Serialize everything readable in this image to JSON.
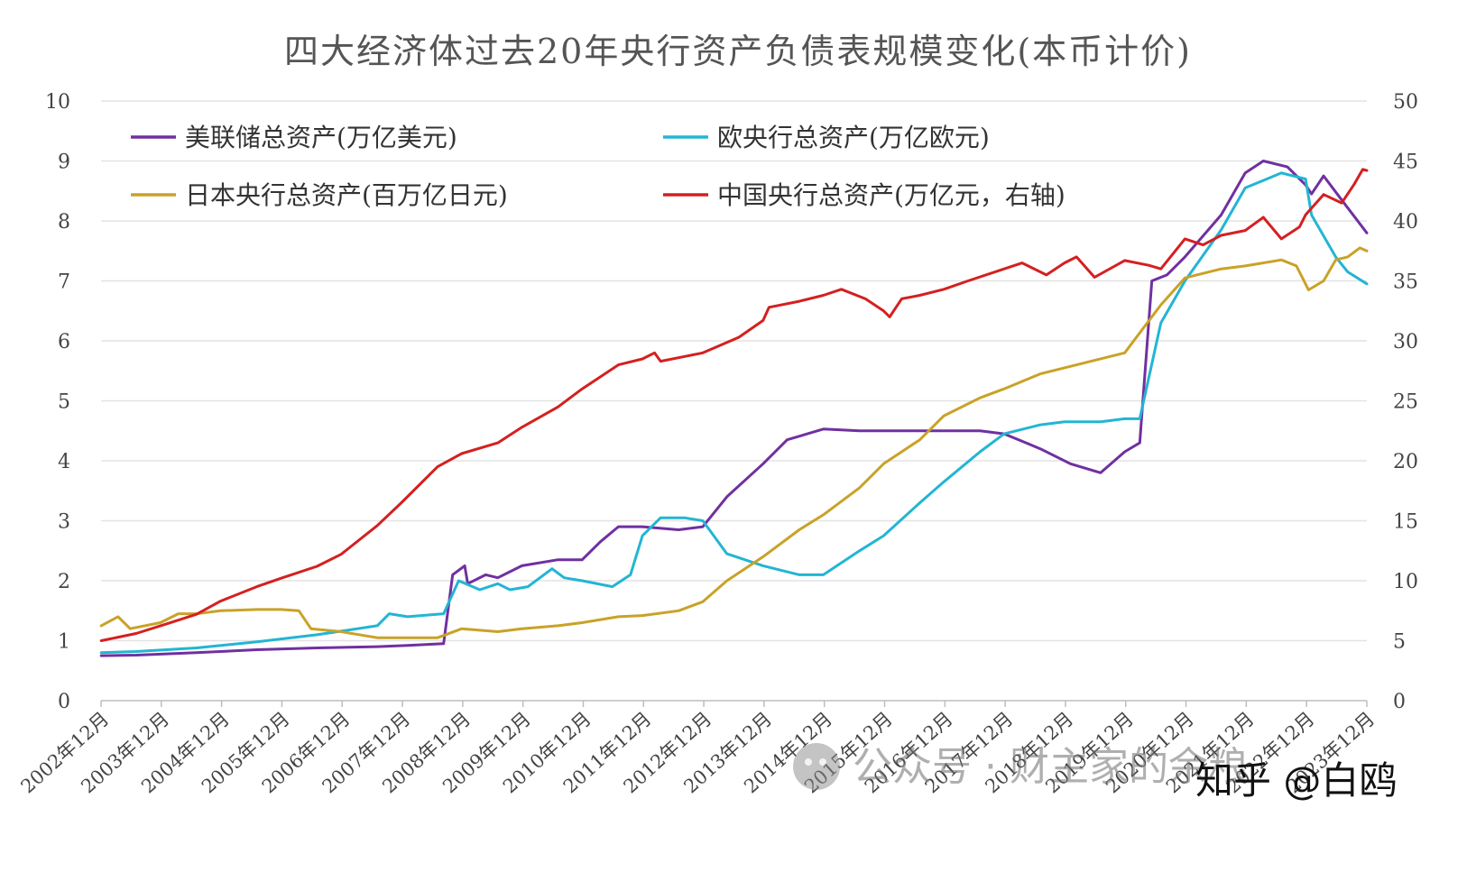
{
  "chart_data": {
    "type": "line",
    "title": "四大经济体过去20年央行资产负债表规模变化(本币计价)",
    "y_left": {
      "ticks": [
        "0",
        "1",
        "2",
        "3",
        "4",
        "5",
        "6",
        "7",
        "8",
        "9",
        "10"
      ],
      "min": 0,
      "max": 10
    },
    "y_right": {
      "ticks": [
        "0",
        "5",
        "10",
        "15",
        "20",
        "25",
        "30",
        "35",
        "40",
        "45",
        "50"
      ],
      "min": 0,
      "max": 50
    },
    "x_ticks": [
      "2002年12月",
      "2003年12月",
      "2004年12月",
      "2005年12月",
      "2006年12月",
      "2007年12月",
      "2008年12月",
      "2009年12月",
      "2010年12月",
      "2011年12月",
      "2012年12月",
      "2013年12月",
      "2014年12月",
      "2015年12月",
      "2016年12月",
      "2017年12月",
      "2018年12月",
      "2019年12月",
      "2020年12月",
      "2021年12月",
      "2022年12月",
      "2023年12月"
    ],
    "x_range": [
      2002.917,
      2023.917
    ],
    "grid": true,
    "legend_position": "top-left",
    "series": [
      {
        "name": "美联储总资产(万亿美元)",
        "color": "#7030a0",
        "axis": "left",
        "points": [
          [
            2002.92,
            0.75
          ],
          [
            2003.5,
            0.76
          ],
          [
            2004.5,
            0.8
          ],
          [
            2005.5,
            0.85
          ],
          [
            2006.5,
            0.88
          ],
          [
            2007.5,
            0.9
          ],
          [
            2008.0,
            0.92
          ],
          [
            2008.6,
            0.95
          ],
          [
            2008.75,
            2.1
          ],
          [
            2008.95,
            2.25
          ],
          [
            2009.0,
            1.95
          ],
          [
            2009.3,
            2.1
          ],
          [
            2009.5,
            2.05
          ],
          [
            2009.9,
            2.25
          ],
          [
            2010.5,
            2.35
          ],
          [
            2010.9,
            2.35
          ],
          [
            2011.2,
            2.65
          ],
          [
            2011.5,
            2.9
          ],
          [
            2011.9,
            2.9
          ],
          [
            2012.5,
            2.85
          ],
          [
            2012.9,
            2.9
          ],
          [
            2013.3,
            3.4
          ],
          [
            2013.9,
            3.95
          ],
          [
            2014.3,
            4.35
          ],
          [
            2014.9,
            4.53
          ],
          [
            2015.5,
            4.5
          ],
          [
            2016.5,
            4.5
          ],
          [
            2017.5,
            4.5
          ],
          [
            2017.9,
            4.45
          ],
          [
            2018.5,
            4.2
          ],
          [
            2019.0,
            3.95
          ],
          [
            2019.5,
            3.8
          ],
          [
            2019.9,
            4.15
          ],
          [
            2020.15,
            4.3
          ],
          [
            2020.35,
            7.0
          ],
          [
            2020.6,
            7.1
          ],
          [
            2020.9,
            7.4
          ],
          [
            2021.5,
            8.1
          ],
          [
            2021.9,
            8.8
          ],
          [
            2022.2,
            9.0
          ],
          [
            2022.6,
            8.9
          ],
          [
            2022.9,
            8.6
          ],
          [
            2023.0,
            8.45
          ],
          [
            2023.2,
            8.75
          ],
          [
            2023.5,
            8.35
          ],
          [
            2023.917,
            7.8
          ]
        ]
      },
      {
        "name": "欧央行总资产(万亿欧元)",
        "color": "#23b5d3",
        "axis": "left",
        "points": [
          [
            2002.92,
            0.8
          ],
          [
            2003.5,
            0.82
          ],
          [
            2004.5,
            0.88
          ],
          [
            2005.5,
            0.98
          ],
          [
            2006.5,
            1.1
          ],
          [
            2007.5,
            1.25
          ],
          [
            2007.7,
            1.45
          ],
          [
            2008.0,
            1.4
          ],
          [
            2008.6,
            1.45
          ],
          [
            2008.85,
            2.0
          ],
          [
            2009.2,
            1.85
          ],
          [
            2009.5,
            1.95
          ],
          [
            2009.7,
            1.85
          ],
          [
            2010.0,
            1.9
          ],
          [
            2010.4,
            2.2
          ],
          [
            2010.6,
            2.05
          ],
          [
            2010.9,
            2.0
          ],
          [
            2011.4,
            1.9
          ],
          [
            2011.7,
            2.1
          ],
          [
            2011.9,
            2.75
          ],
          [
            2012.2,
            3.05
          ],
          [
            2012.6,
            3.05
          ],
          [
            2012.9,
            3.0
          ],
          [
            2013.3,
            2.45
          ],
          [
            2013.9,
            2.25
          ],
          [
            2014.5,
            2.1
          ],
          [
            2014.9,
            2.1
          ],
          [
            2015.5,
            2.5
          ],
          [
            2015.9,
            2.75
          ],
          [
            2016.5,
            3.3
          ],
          [
            2016.9,
            3.65
          ],
          [
            2017.5,
            4.15
          ],
          [
            2017.9,
            4.45
          ],
          [
            2018.5,
            4.6
          ],
          [
            2018.9,
            4.65
          ],
          [
            2019.5,
            4.65
          ],
          [
            2019.9,
            4.7
          ],
          [
            2020.15,
            4.7
          ],
          [
            2020.5,
            6.3
          ],
          [
            2020.9,
            7.0
          ],
          [
            2021.5,
            7.85
          ],
          [
            2021.9,
            8.55
          ],
          [
            2022.5,
            8.8
          ],
          [
            2022.9,
            8.7
          ],
          [
            2023.0,
            8.1
          ],
          [
            2023.4,
            7.4
          ],
          [
            2023.6,
            7.15
          ],
          [
            2023.917,
            6.95
          ]
        ]
      },
      {
        "name": "日本央行总资产(百万亿日元)",
        "color": "#c9a227",
        "axis": "left",
        "points": [
          [
            2002.92,
            1.25
          ],
          [
            2003.2,
            1.4
          ],
          [
            2003.4,
            1.2
          ],
          [
            2003.9,
            1.3
          ],
          [
            2004.2,
            1.45
          ],
          [
            2004.5,
            1.45
          ],
          [
            2004.9,
            1.5
          ],
          [
            2005.5,
            1.52
          ],
          [
            2005.9,
            1.52
          ],
          [
            2006.2,
            1.5
          ],
          [
            2006.4,
            1.2
          ],
          [
            2006.9,
            1.15
          ],
          [
            2007.5,
            1.05
          ],
          [
            2007.9,
            1.05
          ],
          [
            2008.5,
            1.05
          ],
          [
            2008.9,
            1.2
          ],
          [
            2009.5,
            1.15
          ],
          [
            2009.9,
            1.2
          ],
          [
            2010.5,
            1.25
          ],
          [
            2010.9,
            1.3
          ],
          [
            2011.5,
            1.4
          ],
          [
            2011.9,
            1.42
          ],
          [
            2012.5,
            1.5
          ],
          [
            2012.9,
            1.65
          ],
          [
            2013.3,
            2.0
          ],
          [
            2013.9,
            2.4
          ],
          [
            2014.5,
            2.85
          ],
          [
            2014.9,
            3.1
          ],
          [
            2015.5,
            3.55
          ],
          [
            2015.9,
            3.95
          ],
          [
            2016.5,
            4.35
          ],
          [
            2016.9,
            4.75
          ],
          [
            2017.5,
            5.05
          ],
          [
            2017.9,
            5.2
          ],
          [
            2018.5,
            5.45
          ],
          [
            2018.9,
            5.55
          ],
          [
            2019.5,
            5.7
          ],
          [
            2019.9,
            5.8
          ],
          [
            2020.5,
            6.6
          ],
          [
            2020.9,
            7.05
          ],
          [
            2021.5,
            7.2
          ],
          [
            2021.9,
            7.25
          ],
          [
            2022.5,
            7.35
          ],
          [
            2022.75,
            7.25
          ],
          [
            2022.95,
            6.85
          ],
          [
            2023.2,
            7.0
          ],
          [
            2023.4,
            7.35
          ],
          [
            2023.6,
            7.4
          ],
          [
            2023.8,
            7.55
          ],
          [
            2023.917,
            7.5
          ]
        ]
      },
      {
        "name": "中国央行总资产(万亿元，右轴)",
        "color": "#d42020",
        "axis": "right",
        "points": [
          [
            2002.92,
            5.0
          ],
          [
            2003.5,
            5.6
          ],
          [
            2004.0,
            6.4
          ],
          [
            2004.5,
            7.2
          ],
          [
            2004.9,
            8.3
          ],
          [
            2005.5,
            9.5
          ],
          [
            2005.9,
            10.2
          ],
          [
            2006.5,
            11.2
          ],
          [
            2006.9,
            12.2
          ],
          [
            2007.5,
            14.6
          ],
          [
            2007.9,
            16.5
          ],
          [
            2008.5,
            19.5
          ],
          [
            2008.9,
            20.6
          ],
          [
            2009.5,
            21.5
          ],
          [
            2009.9,
            22.8
          ],
          [
            2010.5,
            24.5
          ],
          [
            2010.9,
            26.0
          ],
          [
            2011.5,
            28.0
          ],
          [
            2011.9,
            28.5
          ],
          [
            2012.1,
            29.0
          ],
          [
            2012.2,
            28.3
          ],
          [
            2012.9,
            29.0
          ],
          [
            2013.5,
            30.3
          ],
          [
            2013.9,
            31.7
          ],
          [
            2014.0,
            32.8
          ],
          [
            2014.5,
            33.3
          ],
          [
            2014.9,
            33.8
          ],
          [
            2015.2,
            34.3
          ],
          [
            2015.6,
            33.5
          ],
          [
            2015.9,
            32.5
          ],
          [
            2016.0,
            32.0
          ],
          [
            2016.2,
            33.5
          ],
          [
            2016.5,
            33.8
          ],
          [
            2016.9,
            34.3
          ],
          [
            2017.3,
            35.0
          ],
          [
            2017.9,
            36.0
          ],
          [
            2018.2,
            36.5
          ],
          [
            2018.6,
            35.5
          ],
          [
            2018.9,
            36.5
          ],
          [
            2019.1,
            37.0
          ],
          [
            2019.4,
            35.3
          ],
          [
            2019.9,
            36.7
          ],
          [
            2020.3,
            36.3
          ],
          [
            2020.5,
            36.0
          ],
          [
            2020.9,
            38.5
          ],
          [
            2021.2,
            38.0
          ],
          [
            2021.5,
            38.8
          ],
          [
            2021.9,
            39.2
          ],
          [
            2022.2,
            40.3
          ],
          [
            2022.5,
            38.5
          ],
          [
            2022.8,
            39.5
          ],
          [
            2022.9,
            40.5
          ],
          [
            2023.2,
            42.2
          ],
          [
            2023.5,
            41.5
          ],
          [
            2023.7,
            43.0
          ],
          [
            2023.85,
            44.3
          ],
          [
            2023.917,
            44.2
          ]
        ]
      }
    ]
  },
  "watermark": {
    "wechat": "公众号 · 财主家的余粮",
    "zhihu": "知乎 @白鸥"
  }
}
